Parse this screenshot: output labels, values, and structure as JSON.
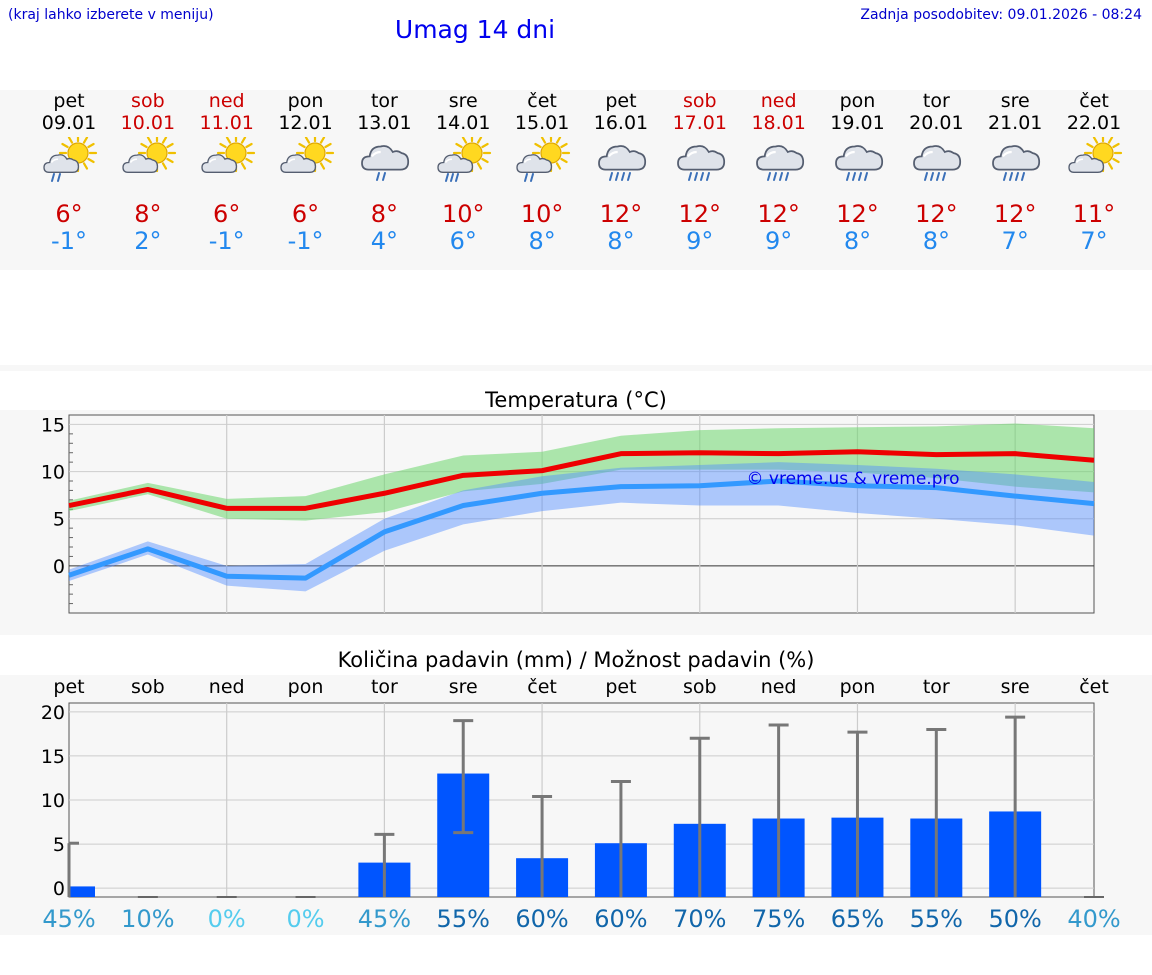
{
  "header": {
    "menu_hint": "(kraj lahko izberete v meniju)",
    "title": "Umag 14 dni",
    "last_update": "Zadnja posodobitev: 09.01.2026 - 08:24"
  },
  "colors": {
    "weekend": "#cc0000",
    "weekday": "#000000",
    "tmax": "#cc0000",
    "tmin": "#2288ee",
    "bar": "#0055ff",
    "line_max": "#ee0000",
    "line_min": "#3399ff"
  },
  "days": [
    {
      "name": "pet",
      "date": "09.01",
      "weekend": false,
      "icon": "sun-cloud-rain-icon",
      "tmax": "6°",
      "tmin": "-1°"
    },
    {
      "name": "sob",
      "date": "10.01",
      "weekend": true,
      "icon": "sun-cloud-icon",
      "tmax": "8°",
      "tmin": "2°"
    },
    {
      "name": "ned",
      "date": "11.01",
      "weekend": true,
      "icon": "sun-cloud-icon",
      "tmax": "6°",
      "tmin": "-1°"
    },
    {
      "name": "pon",
      "date": "12.01",
      "weekend": false,
      "icon": "sun-cloud-icon",
      "tmax": "6°",
      "tmin": "-1°"
    },
    {
      "name": "tor",
      "date": "13.01",
      "weekend": false,
      "icon": "cloud-rain-icon",
      "tmax": "8°",
      "tmin": "4°"
    },
    {
      "name": "sre",
      "date": "14.01",
      "weekend": false,
      "icon": "sun-cloud-heavy-rain-icon",
      "tmax": "10°",
      "tmin": "6°"
    },
    {
      "name": "čet",
      "date": "15.01",
      "weekend": false,
      "icon": "sun-cloud-rain-icon",
      "tmax": "10°",
      "tmin": "8°"
    },
    {
      "name": "pet",
      "date": "16.01",
      "weekend": false,
      "icon": "cloud-heavy-rain-icon",
      "tmax": "12°",
      "tmin": "8°"
    },
    {
      "name": "sob",
      "date": "17.01",
      "weekend": true,
      "icon": "cloud-heavy-rain-icon",
      "tmax": "12°",
      "tmin": "9°"
    },
    {
      "name": "ned",
      "date": "18.01",
      "weekend": true,
      "icon": "cloud-heavy-rain-icon",
      "tmax": "12°",
      "tmin": "9°"
    },
    {
      "name": "pon",
      "date": "19.01",
      "weekend": false,
      "icon": "cloud-heavy-rain-icon",
      "tmax": "12°",
      "tmin": "8°"
    },
    {
      "name": "tor",
      "date": "20.01",
      "weekend": false,
      "icon": "cloud-heavy-rain-icon",
      "tmax": "12°",
      "tmin": "8°"
    },
    {
      "name": "sre",
      "date": "21.01",
      "weekend": false,
      "icon": "cloud-heavy-rain-icon",
      "tmax": "12°",
      "tmin": "7°"
    },
    {
      "name": "čet",
      "date": "22.01",
      "weekend": false,
      "icon": "sun-cloud-icon",
      "tmax": "11°",
      "tmin": "7°"
    }
  ],
  "chart_data": [
    {
      "type": "line",
      "title": "Temperatura (°C)",
      "watermark": "© vreme.us & vreme.pro",
      "ylim": [
        -5,
        16
      ],
      "yticks": [
        0,
        5,
        10,
        15
      ],
      "x": [
        0,
        1,
        2,
        3,
        4,
        5,
        6,
        7,
        8,
        9,
        10,
        11,
        12,
        13
      ],
      "series": [
        {
          "name": "max",
          "values": [
            6.4,
            8.1,
            6.1,
            6.1,
            7.7,
            9.6,
            10.1,
            11.9,
            12.0,
            11.9,
            12.1,
            11.8,
            11.9,
            11.2
          ],
          "band_low": [
            5.8,
            7.6,
            5.0,
            4.8,
            5.7,
            7.9,
            8.7,
            10.2,
            10.2,
            10.2,
            9.9,
            9.3,
            8.4,
            7.8
          ],
          "band_high": [
            6.9,
            8.8,
            7.1,
            7.4,
            9.7,
            11.7,
            12.1,
            13.8,
            14.4,
            14.6,
            14.7,
            14.8,
            15.1,
            14.6
          ]
        },
        {
          "name": "min",
          "values": [
            -1.0,
            1.8,
            -1.1,
            -1.3,
            3.6,
            6.4,
            7.7,
            8.4,
            8.5,
            9.0,
            8.5,
            8.3,
            7.4,
            6.6
          ],
          "band_low": [
            -1.6,
            1.2,
            -2.1,
            -2.7,
            1.6,
            4.4,
            5.8,
            6.7,
            6.4,
            6.4,
            5.6,
            5.0,
            4.3,
            3.2
          ],
          "band_high": [
            -0.4,
            2.6,
            0.0,
            0.2,
            5.0,
            8.0,
            9.5,
            10.4,
            10.7,
            11.0,
            10.7,
            10.3,
            9.7,
            8.9
          ]
        }
      ]
    },
    {
      "type": "bar",
      "title": "Količina padavin (mm) / Možnost padavin (%)",
      "ylim": [
        -1,
        21
      ],
      "yticks": [
        0,
        5,
        10,
        15,
        20
      ],
      "categories": [
        "pet",
        "sob",
        "ned",
        "pon",
        "tor",
        "sre",
        "čet",
        "pet",
        "sob",
        "ned",
        "pon",
        "tor",
        "sre",
        "čet"
      ],
      "values": [
        0.2,
        0,
        0,
        0,
        2.9,
        13.0,
        3.4,
        5.1,
        7.3,
        7.9,
        8.0,
        7.9,
        8.7,
        0
      ],
      "error_low": [
        0,
        0,
        0,
        0,
        0,
        6.3,
        0,
        0,
        0,
        0,
        0,
        0,
        0,
        0
      ],
      "error_high": [
        5.1,
        0,
        0,
        0,
        6.1,
        19.0,
        10.4,
        12.1,
        17.0,
        18.5,
        17.7,
        18.0,
        19.4,
        0
      ],
      "probability": [
        "45%",
        "10%",
        "0%",
        "0%",
        "45%",
        "55%",
        "60%",
        "60%",
        "70%",
        "75%",
        "65%",
        "55%",
        "50%",
        "40%"
      ],
      "probability_colors": [
        "#3399cc",
        "#3399cc",
        "#55ccee",
        "#55ccee",
        "#3399cc",
        "#1166aa",
        "#1166aa",
        "#1166aa",
        "#1166aa",
        "#1166aa",
        "#1166aa",
        "#1166aa",
        "#1166aa",
        "#3399cc"
      ]
    }
  ]
}
